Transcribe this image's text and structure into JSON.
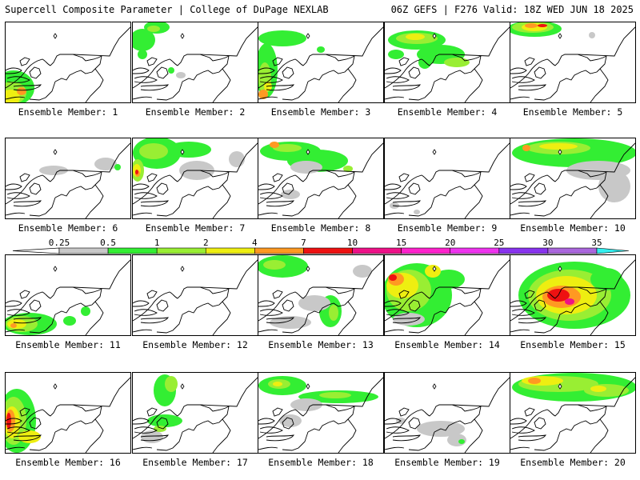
{
  "header": {
    "left_title": "Supercell Composite Parameter | College of DuPage NEXLAB",
    "right_title": "06Z GEFS | F276 Valid: 18Z WED JUN 18 2025"
  },
  "panel_label_prefix": "Ensemble Member:",
  "members": [
    {
      "id": "1",
      "label": "Ensemble Member: 1",
      "max_level": "4"
    },
    {
      "id": "2",
      "label": "Ensemble Member: 2",
      "max_level": "2"
    },
    {
      "id": "3",
      "label": "Ensemble Member: 3",
      "max_level": "4"
    },
    {
      "id": "4",
      "label": "Ensemble Member: 4",
      "max_level": "4"
    },
    {
      "id": "5",
      "label": "Ensemble Member: 5",
      "max_level": "10"
    },
    {
      "id": "6",
      "label": "Ensemble Member: 6",
      "max_level": "0.5"
    },
    {
      "id": "7",
      "label": "Ensemble Member: 7",
      "max_level": "10"
    },
    {
      "id": "8",
      "label": "Ensemble Member: 8",
      "max_level": "7"
    },
    {
      "id": "9",
      "label": "Ensemble Member: 9",
      "max_level": "0.5"
    },
    {
      "id": "10",
      "label": "Ensemble Member: 10",
      "max_level": "7"
    },
    {
      "id": "11",
      "label": "Ensemble Member: 11",
      "max_level": "7"
    },
    {
      "id": "12",
      "label": "Ensemble Member: 12",
      "max_level": "0"
    },
    {
      "id": "13",
      "label": "Ensemble Member: 13",
      "max_level": "4"
    },
    {
      "id": "14",
      "label": "Ensemble Member: 14",
      "max_level": "10"
    },
    {
      "id": "15",
      "label": "Ensemble Member: 15",
      "max_level": "10"
    },
    {
      "id": "16",
      "label": "Ensemble Member: 16",
      "max_level": "10"
    },
    {
      "id": "17",
      "label": "Ensemble Member: 17",
      "max_level": "2"
    },
    {
      "id": "18",
      "label": "Ensemble Member: 18",
      "max_level": "4"
    },
    {
      "id": "19",
      "label": "Ensemble Member: 19",
      "max_level": "1"
    },
    {
      "id": "20",
      "label": "Ensemble Member: 20",
      "max_level": "7"
    }
  ],
  "colorbar": {
    "ticks": [
      "0.25",
      "0.5",
      "1",
      "2",
      "4",
      "7",
      "10",
      "15",
      "20",
      "25",
      "30",
      "35"
    ],
    "bins": [
      {
        "from": "0.25",
        "to": "0.5",
        "color": "#c8c8c8"
      },
      {
        "from": "0.5",
        "to": "1",
        "color": "#33ee33"
      },
      {
        "from": "1",
        "to": "2",
        "color": "#99ee33"
      },
      {
        "from": "2",
        "to": "4",
        "color": "#eeee11"
      },
      {
        "from": "4",
        "to": "7",
        "color": "#ff9922"
      },
      {
        "from": "7",
        "to": "10",
        "color": "#ee1111"
      },
      {
        "from": "10",
        "to": "15",
        "color": "#ee1188"
      },
      {
        "from": "15",
        "to": "20",
        "color": "#ff22cc"
      },
      {
        "from": "20",
        "to": "25",
        "color": "#ee33ee"
      },
      {
        "from": "25",
        "to": "30",
        "color": "#8833ee"
      },
      {
        "from": "30",
        "to": "35",
        "color": "#aa66dd"
      },
      {
        "from": "35",
        "to": "",
        "color": "#33eeee"
      }
    ]
  }
}
